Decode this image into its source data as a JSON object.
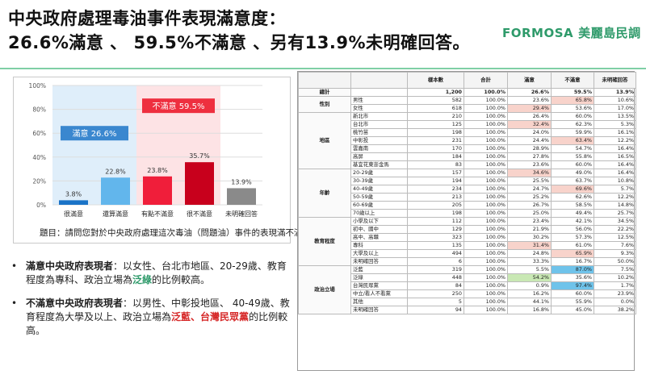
{
  "header": {
    "title_line1": "中央政府處理毒油事件表現滿意度：",
    "title_line2": "26.6%滿意 、 59.5%不滿意 、另有13.9%未明確回答。",
    "brand_en": "FORMOSA",
    "brand_zh": "美麗島民調"
  },
  "chart_data": {
    "type": "bar",
    "categories": [
      "很滿意",
      "還算滿意",
      "有點不滿意",
      "很不滿意",
      "未明確回答"
    ],
    "values": [
      3.8,
      22.8,
      23.8,
      35.7,
      13.9
    ],
    "value_labels": [
      "3.8%",
      "22.8%",
      "23.8%",
      "35.7%",
      "13.9%"
    ],
    "colors": [
      "#1a73c7",
      "#62b6ec",
      "#f01e3a",
      "#c8001c",
      "#8a8a8a"
    ],
    "ylim": [
      0,
      100
    ],
    "yticks": [
      "0%",
      "20%",
      "40%",
      "60%",
      "80%",
      "100%"
    ],
    "grid": true,
    "groups": [
      {
        "label": "滿意 26.6%",
        "color": "#3a87cf",
        "band": "#dfeefa"
      },
      {
        "label": "不滿意 59.5%",
        "color": "#ee2f3f",
        "band": "#fde3e5"
      }
    ],
    "caption": "題目：請問您對於中央政府處理這次毒油（問題油）事件的表現滿不滿意？"
  },
  "bullets": [
    {
      "dot": "•",
      "lead": "滿意中央政府表現者",
      "pre": "：以女性、台北市地區、20-29歲、教育程度為專科、政治立場為",
      "hl1": "泛綠",
      "mid": "",
      "hl2": "",
      "post": "的比例較高。"
    },
    {
      "dot": "•",
      "lead": "不滿意中央政府表現者",
      "pre": "：以男性、中彰投地區、 40-49歲、教育程度為大學及以上、政治立場為",
      "hl1": "泛藍",
      "mid": "、",
      "hl2": "台灣民眾黨",
      "post": "的比例較高。"
    }
  ],
  "table": {
    "headers": [
      "樣本數",
      "合計",
      "滿意",
      "不滿意",
      "未明確回答"
    ],
    "rows": [
      {
        "group": "總計",
        "sub": "",
        "n": "1,200",
        "total": "100.0%",
        "sat": "26.6%",
        "dis": "59.5%",
        "na": "13.9%"
      },
      {
        "group": "性別",
        "sub": "男性",
        "n": "582",
        "total": "100.0%",
        "sat": "23.6%",
        "dis": "65.8%",
        "na": "10.6%"
      },
      {
        "group": "",
        "sub": "女性",
        "n": "618",
        "total": "100.0%",
        "sat": "29.4%",
        "dis": "53.6%",
        "na": "17.0%"
      },
      {
        "group": "地區",
        "sub": "新北市",
        "n": "210",
        "total": "100.0%",
        "sat": "26.4%",
        "dis": "60.0%",
        "na": "13.5%"
      },
      {
        "group": "",
        "sub": "台北市",
        "n": "125",
        "total": "100.0%",
        "sat": "32.4%",
        "dis": "62.3%",
        "na": "5.3%"
      },
      {
        "group": "",
        "sub": "桃竹苗",
        "n": "198",
        "total": "100.0%",
        "sat": "24.0%",
        "dis": "59.9%",
        "na": "16.1%"
      },
      {
        "group": "",
        "sub": "中彰投",
        "n": "231",
        "total": "100.0%",
        "sat": "24.4%",
        "dis": "63.4%",
        "na": "12.2%"
      },
      {
        "group": "",
        "sub": "雲嘉南",
        "n": "170",
        "total": "100.0%",
        "sat": "28.9%",
        "dis": "54.7%",
        "na": "16.4%"
      },
      {
        "group": "",
        "sub": "高屏",
        "n": "184",
        "total": "100.0%",
        "sat": "27.8%",
        "dis": "55.8%",
        "na": "16.5%"
      },
      {
        "group": "",
        "sub": "基宜花東澎金馬",
        "n": "83",
        "total": "100.0%",
        "sat": "23.6%",
        "dis": "60.0%",
        "na": "16.4%"
      },
      {
        "group": "年齡",
        "sub": "20-29歲",
        "n": "157",
        "total": "100.0%",
        "sat": "34.6%",
        "dis": "49.0%",
        "na": "16.4%"
      },
      {
        "group": "",
        "sub": "30-39歲",
        "n": "194",
        "total": "100.0%",
        "sat": "25.5%",
        "dis": "63.7%",
        "na": "10.8%"
      },
      {
        "group": "",
        "sub": "40-49歲",
        "n": "234",
        "total": "100.0%",
        "sat": "24.7%",
        "dis": "69.6%",
        "na": "5.7%"
      },
      {
        "group": "",
        "sub": "50-59歲",
        "n": "213",
        "total": "100.0%",
        "sat": "25.2%",
        "dis": "62.6%",
        "na": "12.2%"
      },
      {
        "group": "",
        "sub": "60-69歲",
        "n": "205",
        "total": "100.0%",
        "sat": "26.7%",
        "dis": "58.5%",
        "na": "14.8%"
      },
      {
        "group": "",
        "sub": "70歲以上",
        "n": "198",
        "total": "100.0%",
        "sat": "25.0%",
        "dis": "49.4%",
        "na": "25.7%"
      },
      {
        "group": "教育程度",
        "sub": "小學及以下",
        "n": "112",
        "total": "100.0%",
        "sat": "23.4%",
        "dis": "42.1%",
        "na": "34.5%"
      },
      {
        "group": "",
        "sub": "初中、國中",
        "n": "129",
        "total": "100.0%",
        "sat": "21.9%",
        "dis": "56.0%",
        "na": "22.2%"
      },
      {
        "group": "",
        "sub": "高中、高職",
        "n": "323",
        "total": "100.0%",
        "sat": "30.2%",
        "dis": "57.3%",
        "na": "12.5%"
      },
      {
        "group": "",
        "sub": "專科",
        "n": "135",
        "total": "100.0%",
        "sat": "31.4%",
        "dis": "61.0%",
        "na": "7.6%"
      },
      {
        "group": "",
        "sub": "大學及以上",
        "n": "494",
        "total": "100.0%",
        "sat": "24.8%",
        "dis": "65.9%",
        "na": "9.3%"
      },
      {
        "group": "",
        "sub": "未明確回答",
        "n": "6",
        "total": "100.0%",
        "sat": "33.3%",
        "dis": "16.7%",
        "na": "50.0%"
      },
      {
        "group": "政治立場",
        "sub": "泛藍",
        "n": "319",
        "total": "100.0%",
        "sat": "5.5%",
        "dis": "87.0%",
        "na": "7.5%"
      },
      {
        "group": "",
        "sub": "泛綠",
        "n": "448",
        "total": "100.0%",
        "sat": "54.2%",
        "dis": "35.6%",
        "na": "10.2%"
      },
      {
        "group": "",
        "sub": "台灣民眾黨",
        "n": "84",
        "total": "100.0%",
        "sat": "0.9%",
        "dis": "97.4%",
        "na": "1.7%"
      },
      {
        "group": "",
        "sub": "中立/看人不看黨",
        "n": "250",
        "total": "100.0%",
        "sat": "16.2%",
        "dis": "60.0%",
        "na": "23.9%"
      },
      {
        "group": "",
        "sub": "其他",
        "n": "5",
        "total": "100.0%",
        "sat": "44.1%",
        "dis": "55.9%",
        "na": "0.0%"
      },
      {
        "group": "",
        "sub": "未明確回答",
        "n": "94",
        "total": "100.0%",
        "sat": "16.8%",
        "dis": "45.0%",
        "na": "38.2%"
      }
    ]
  }
}
